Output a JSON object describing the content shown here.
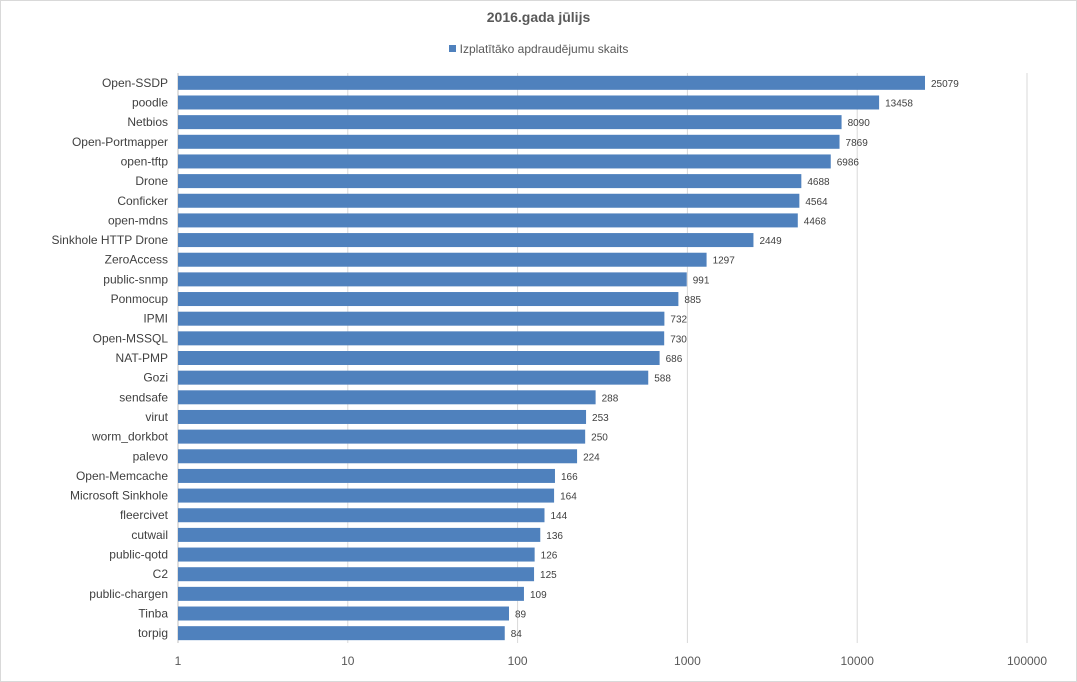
{
  "chart_data": {
    "type": "bar",
    "orientation": "horizontal",
    "title": "2016.gada jūlijs",
    "legend_position": "top",
    "x_scale": "log",
    "xlim": [
      1,
      100000
    ],
    "x_ticks": [
      "1",
      "10",
      "100",
      "1000",
      "10000",
      "100000"
    ],
    "x_tick_values": [
      1,
      10,
      100,
      1000,
      10000,
      100000
    ],
    "grid": "vertical",
    "bar_color": "#4f81bd",
    "series": [
      {
        "name": "Izplatītāko apdraudējumu skaits",
        "values": [
          25079,
          13458,
          8090,
          7869,
          6986,
          4688,
          4564,
          4468,
          2449,
          1297,
          991,
          885,
          732,
          730,
          686,
          588,
          288,
          253,
          250,
          224,
          166,
          164,
          144,
          136,
          126,
          125,
          109,
          89,
          84
        ]
      }
    ],
    "categories": [
      "Open-SSDP",
      "poodle",
      "Netbios",
      "Open-Portmapper",
      "open-tftp",
      "Drone",
      "Conficker",
      "open-mdns",
      "Sinkhole HTTP Drone",
      "ZeroAccess",
      "public-snmp",
      "Ponmocup",
      "IPMI",
      "Open-MSSQL",
      "NAT-PMP",
      "Gozi",
      "sendsafe",
      "virut",
      "worm_dorkbot",
      "palevo",
      "Open-Memcache",
      "Microsoft Sinkhole",
      "fleercivet",
      "cutwail",
      "public-qotd",
      "C2",
      "public-chargen",
      "Tinba",
      "torpig"
    ]
  }
}
